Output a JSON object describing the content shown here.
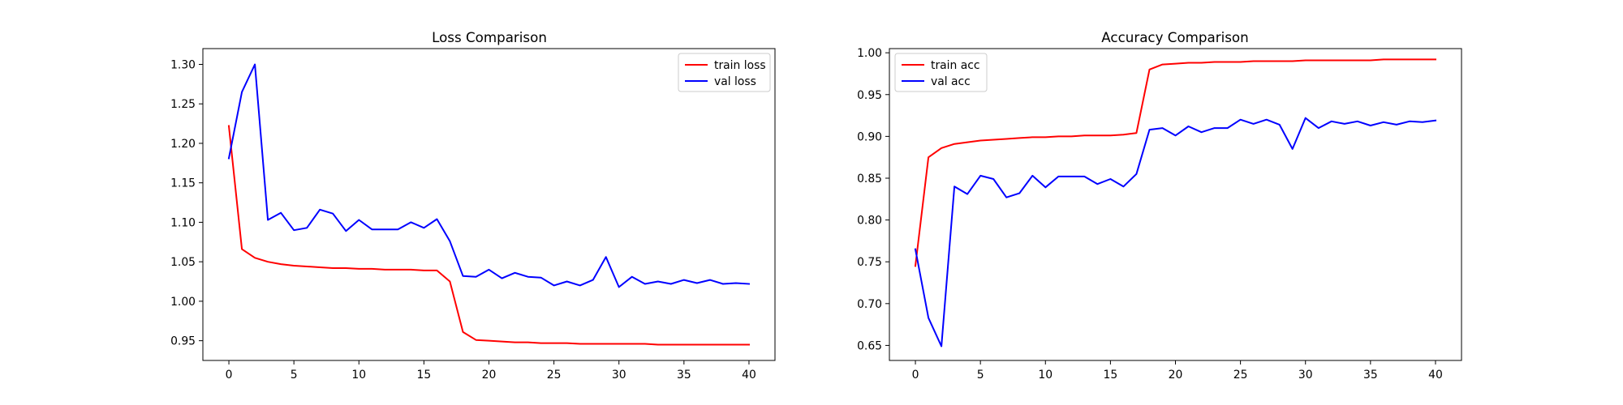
{
  "figure": {
    "background": "#ffffff"
  },
  "chart_data": [
    {
      "type": "line",
      "title": "Loss Comparison",
      "xlabel": "",
      "ylabel": "",
      "xlim": [
        -2,
        42
      ],
      "ylim": [
        0.925,
        1.32
      ],
      "xticks": [
        0,
        5,
        10,
        15,
        20,
        25,
        30,
        35,
        40
      ],
      "xtick_labels": [
        "0",
        "5",
        "10",
        "15",
        "20",
        "25",
        "30",
        "35",
        "40"
      ],
      "yticks": [
        0.95,
        1.0,
        1.05,
        1.1,
        1.15,
        1.2,
        1.25,
        1.3
      ],
      "ytick_labels": [
        "0.95",
        "1.00",
        "1.05",
        "1.10",
        "1.15",
        "1.20",
        "1.25",
        "1.30"
      ],
      "grid": false,
      "legend_position": "upper right",
      "x": [
        0,
        1,
        2,
        3,
        4,
        5,
        6,
        7,
        8,
        9,
        10,
        11,
        12,
        13,
        14,
        15,
        16,
        17,
        18,
        19,
        20,
        21,
        22,
        23,
        24,
        25,
        26,
        27,
        28,
        29,
        30,
        31,
        32,
        33,
        34,
        35,
        36,
        37,
        38,
        39,
        40
      ],
      "series": [
        {
          "name": "train loss",
          "color": "#ff0000",
          "values": [
            1.222,
            1.066,
            1.055,
            1.05,
            1.047,
            1.045,
            1.044,
            1.043,
            1.042,
            1.042,
            1.041,
            1.041,
            1.04,
            1.04,
            1.04,
            1.039,
            1.039,
            1.025,
            0.961,
            0.951,
            0.95,
            0.949,
            0.948,
            0.948,
            0.947,
            0.947,
            0.947,
            0.946,
            0.946,
            0.946,
            0.946,
            0.946,
            0.946,
            0.945,
            0.945,
            0.945,
            0.945,
            0.945,
            0.945,
            0.945,
            0.945
          ]
        },
        {
          "name": "val loss",
          "color": "#0000ff",
          "values": [
            1.181,
            1.265,
            1.3,
            1.103,
            1.112,
            1.09,
            1.093,
            1.116,
            1.111,
            1.089,
            1.103,
            1.091,
            1.091,
            1.091,
            1.1,
            1.093,
            1.104,
            1.076,
            1.032,
            1.031,
            1.04,
            1.029,
            1.036,
            1.031,
            1.03,
            1.02,
            1.025,
            1.02,
            1.027,
            1.056,
            1.018,
            1.031,
            1.022,
            1.025,
            1.022,
            1.027,
            1.023,
            1.027,
            1.022,
            1.023,
            1.022
          ]
        }
      ]
    },
    {
      "type": "line",
      "title": "Accuracy Comparison",
      "xlabel": "",
      "ylabel": "",
      "xlim": [
        -2,
        42
      ],
      "ylim": [
        0.632,
        1.005
      ],
      "xticks": [
        0,
        5,
        10,
        15,
        20,
        25,
        30,
        35,
        40
      ],
      "xtick_labels": [
        "0",
        "5",
        "10",
        "15",
        "20",
        "25",
        "30",
        "35",
        "40"
      ],
      "yticks": [
        0.65,
        0.7,
        0.75,
        0.8,
        0.85,
        0.9,
        0.95,
        1.0
      ],
      "ytick_labels": [
        "0.65",
        "0.70",
        "0.75",
        "0.80",
        "0.85",
        "0.90",
        "0.95",
        "1.00"
      ],
      "grid": false,
      "legend_position": "upper left",
      "x": [
        0,
        1,
        2,
        3,
        4,
        5,
        6,
        7,
        8,
        9,
        10,
        11,
        12,
        13,
        14,
        15,
        16,
        17,
        18,
        19,
        20,
        21,
        22,
        23,
        24,
        25,
        26,
        27,
        28,
        29,
        30,
        31,
        32,
        33,
        34,
        35,
        36,
        37,
        38,
        39,
        40
      ],
      "series": [
        {
          "name": "train acc",
          "color": "#ff0000",
          "values": [
            0.745,
            0.875,
            0.886,
            0.891,
            0.893,
            0.895,
            0.896,
            0.897,
            0.898,
            0.899,
            0.899,
            0.9,
            0.9,
            0.901,
            0.901,
            0.901,
            0.902,
            0.904,
            0.98,
            0.986,
            0.987,
            0.988,
            0.988,
            0.989,
            0.989,
            0.989,
            0.99,
            0.99,
            0.99,
            0.99,
            0.991,
            0.991,
            0.991,
            0.991,
            0.991,
            0.991,
            0.992,
            0.992,
            0.992,
            0.992,
            0.992
          ]
        },
        {
          "name": "val acc",
          "color": "#0000ff",
          "values": [
            0.765,
            0.683,
            0.649,
            0.84,
            0.831,
            0.853,
            0.849,
            0.827,
            0.832,
            0.853,
            0.839,
            0.852,
            0.852,
            0.852,
            0.843,
            0.849,
            0.84,
            0.855,
            0.908,
            0.91,
            0.901,
            0.912,
            0.905,
            0.91,
            0.91,
            0.92,
            0.915,
            0.92,
            0.914,
            0.885,
            0.922,
            0.91,
            0.918,
            0.915,
            0.918,
            0.913,
            0.917,
            0.914,
            0.918,
            0.917,
            0.919
          ]
        }
      ]
    }
  ]
}
